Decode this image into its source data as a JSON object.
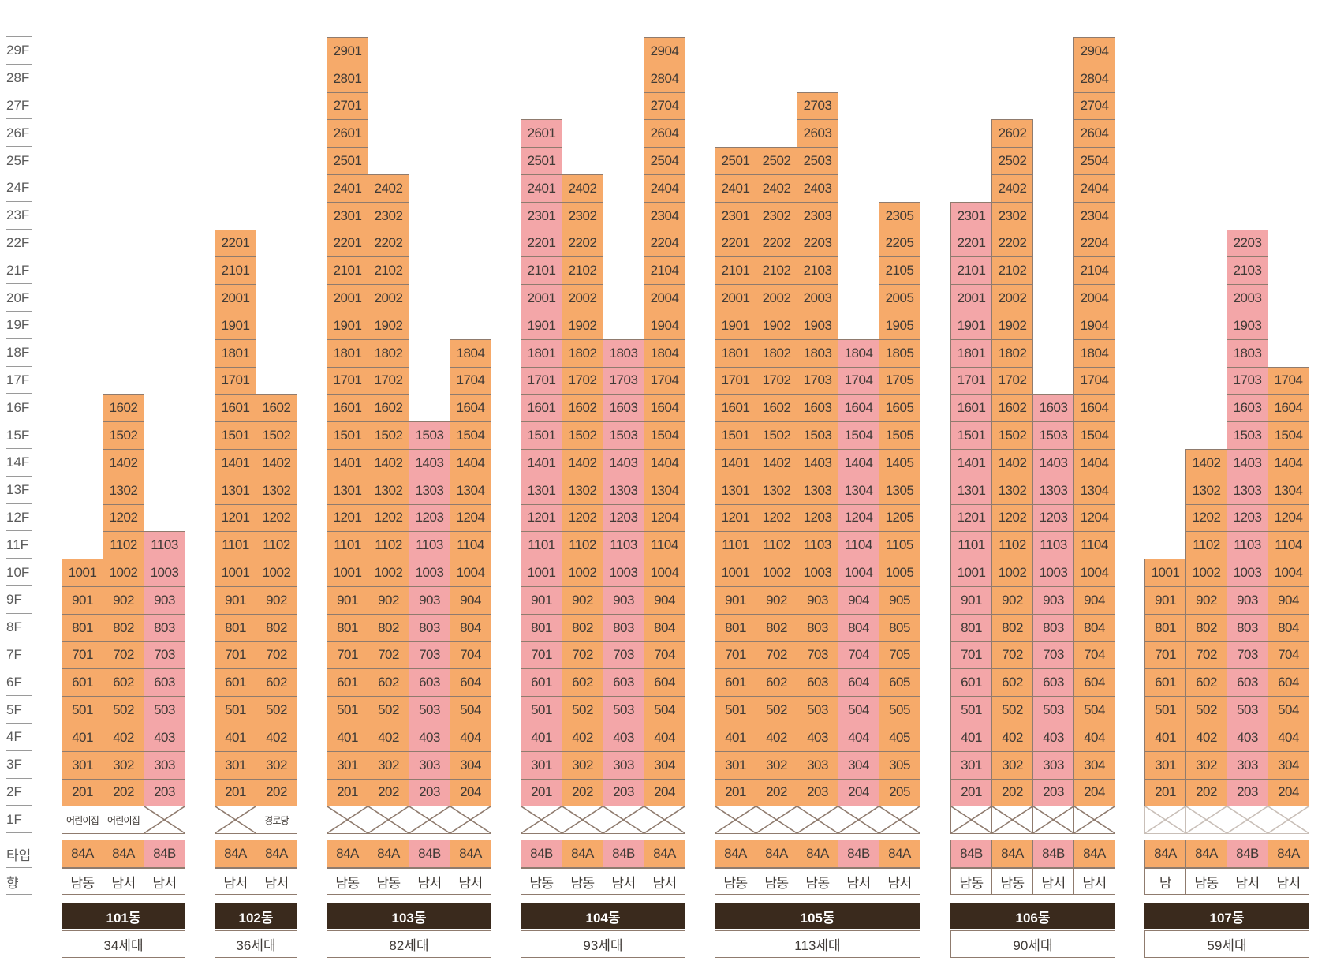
{
  "floors": [
    "29F",
    "28F",
    "27F",
    "26F",
    "25F",
    "24F",
    "23F",
    "22F",
    "21F",
    "20F",
    "19F",
    "18F",
    "17F",
    "16F",
    "15F",
    "14F",
    "13F",
    "12F",
    "11F",
    "10F",
    "9F",
    "8F",
    "7F",
    "6F",
    "5F",
    "4F",
    "3F",
    "2F",
    "1F"
  ],
  "row_labels": {
    "type": "타입",
    "direction": "향"
  },
  "colors": {
    "orange": "#f6aa6a",
    "pink": "#f3a6a8",
    "building_bar": "#3a2a1d"
  },
  "buildings": [
    {
      "name": "101동",
      "households": "34세대",
      "columns": [
        {
          "top": 10,
          "color": "orange",
          "type": "84A",
          "direction": "남동",
          "ground": "어린이집"
        },
        {
          "top": 16,
          "color": "orange",
          "type": "84A",
          "direction": "남서",
          "ground": "어린이집"
        },
        {
          "top": 11,
          "color": "pink",
          "type": "84B",
          "direction": "남서",
          "ground": ""
        }
      ]
    },
    {
      "name": "102동",
      "households": "36세대",
      "columns": [
        {
          "top": 22,
          "color": "orange",
          "type": "84A",
          "direction": "남서",
          "ground": ""
        },
        {
          "top": 16,
          "color": "orange",
          "type": "84A",
          "direction": "남서",
          "ground": "경로당"
        }
      ]
    },
    {
      "name": "103동",
      "households": "82세대",
      "columns": [
        {
          "top": 29,
          "color": "orange",
          "type": "84A",
          "direction": "남동",
          "ground": ""
        },
        {
          "top": 24,
          "color": "orange",
          "type": "84A",
          "direction": "남동",
          "ground": ""
        },
        {
          "top": 15,
          "color": "pink",
          "type": "84B",
          "direction": "남서",
          "ground": ""
        },
        {
          "top": 18,
          "color": "orange",
          "type": "84A",
          "direction": "남서",
          "ground": ""
        }
      ]
    },
    {
      "name": "104동",
      "households": "93세대",
      "columns": [
        {
          "top": 26,
          "color": "pink",
          "type": "84B",
          "direction": "남동",
          "ground": ""
        },
        {
          "top": 24,
          "color": "orange",
          "type": "84A",
          "direction": "남동",
          "ground": ""
        },
        {
          "top": 18,
          "color": "pink",
          "type": "84B",
          "direction": "남서",
          "ground": ""
        },
        {
          "top": 29,
          "color": "orange",
          "type": "84A",
          "direction": "남서",
          "ground": ""
        }
      ]
    },
    {
      "name": "105동",
      "households": "113세대",
      "columns": [
        {
          "top": 25,
          "color": "orange",
          "type": "84A",
          "direction": "남동",
          "ground": ""
        },
        {
          "top": 25,
          "color": "orange",
          "type": "84A",
          "direction": "남동",
          "ground": ""
        },
        {
          "top": 27,
          "color": "orange",
          "type": "84A",
          "direction": "남동",
          "ground": ""
        },
        {
          "top": 18,
          "color": "pink",
          "type": "84B",
          "direction": "남서",
          "ground": ""
        },
        {
          "top": 23,
          "color": "orange",
          "type": "84A",
          "direction": "남서",
          "ground": ""
        }
      ]
    },
    {
      "name": "106동",
      "households": "90세대",
      "columns": [
        {
          "top": 23,
          "color": "pink",
          "type": "84B",
          "direction": "남동",
          "ground": ""
        },
        {
          "top": 26,
          "color": "orange",
          "type": "84A",
          "direction": "남동",
          "ground": ""
        },
        {
          "top": 16,
          "color": "pink",
          "type": "84B",
          "direction": "남서",
          "ground": ""
        },
        {
          "top": 29,
          "color": "orange",
          "type": "84A",
          "direction": "남서",
          "ground": ""
        }
      ]
    },
    {
      "name": "107동",
      "households": "59세대",
      "columns": [
        {
          "top": 10,
          "color": "orange",
          "type": "84A",
          "direction": "남",
          "ground": ""
        },
        {
          "top": 14,
          "color": "orange",
          "type": "84A",
          "direction": "남동",
          "ground": ""
        },
        {
          "top": 22,
          "color": "pink",
          "type": "84B",
          "direction": "남서",
          "ground": ""
        },
        {
          "top": 17,
          "color": "orange",
          "type": "84A",
          "direction": "남서",
          "ground": ""
        }
      ]
    }
  ]
}
